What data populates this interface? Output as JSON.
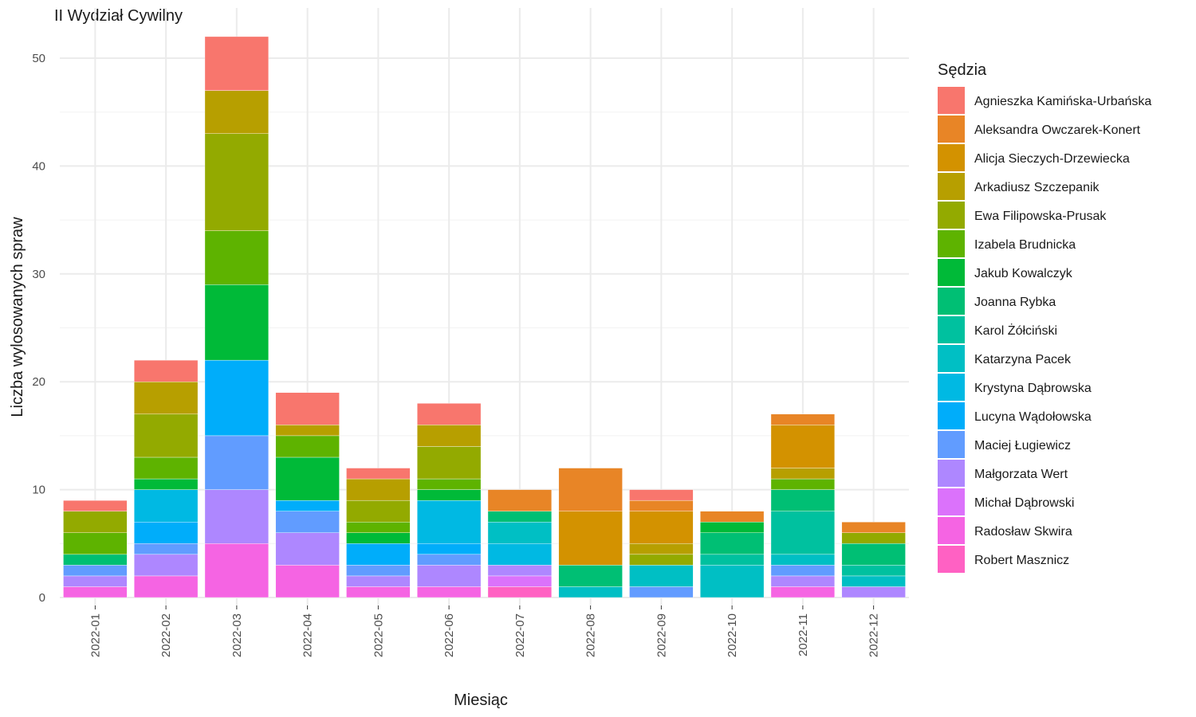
{
  "chart_data": {
    "type": "bar",
    "stacked": true,
    "title": "II Wydział Cywilny",
    "xlabel": "Miesiąc",
    "ylabel": "Liczba wylosowanych spraw",
    "ylim": [
      0,
      53
    ],
    "yticks": [
      0,
      10,
      20,
      30,
      40,
      50
    ],
    "grid": true,
    "legend_title": "Sędzia",
    "legend_position": "right",
    "categories": [
      "2022-01",
      "2022-02",
      "2022-03",
      "2022-04",
      "2022-05",
      "2022-06",
      "2022-07",
      "2022-08",
      "2022-09",
      "2022-10",
      "2022-11",
      "2022-12"
    ],
    "series": [
      {
        "name": "Agnieszka Kamińska-Urbańska",
        "color": "#F8766D",
        "values": [
          1,
          2,
          5,
          3,
          1,
          2,
          0,
          0,
          1,
          0,
          0,
          0
        ]
      },
      {
        "name": "Aleksandra Owczarek-Konert",
        "color": "#E88526",
        "values": [
          0,
          0,
          0,
          0,
          0,
          0,
          2,
          4,
          1,
          1,
          1,
          1
        ]
      },
      {
        "name": "Alicja Sieczych-Drzewiecka",
        "color": "#D39200",
        "values": [
          0,
          0,
          0,
          0,
          0,
          0,
          0,
          5,
          3,
          0,
          4,
          0
        ]
      },
      {
        "name": "Arkadiusz Szczepanik",
        "color": "#B79F00",
        "values": [
          0,
          3,
          4,
          1,
          2,
          2,
          0,
          0,
          1,
          0,
          1,
          0
        ]
      },
      {
        "name": "Ewa Filipowska-Prusak",
        "color": "#93AA00",
        "values": [
          2,
          4,
          9,
          0,
          2,
          3,
          0,
          0,
          1,
          0,
          0,
          1
        ]
      },
      {
        "name": "Izabela Brudnicka",
        "color": "#5EB300",
        "values": [
          2,
          2,
          5,
          2,
          1,
          1,
          0,
          0,
          0,
          0,
          1,
          0
        ]
      },
      {
        "name": "Jakub Kowalczyk",
        "color": "#00BA38",
        "values": [
          0,
          1,
          7,
          4,
          1,
          1,
          0,
          0,
          0,
          1,
          0,
          0
        ]
      },
      {
        "name": "Joanna Rybka",
        "color": "#00BF74",
        "values": [
          1,
          0,
          0,
          0,
          0,
          0,
          1,
          2,
          0,
          2,
          2,
          2
        ]
      },
      {
        "name": "Karol Żółciński",
        "color": "#00C19F",
        "values": [
          0,
          0,
          0,
          0,
          0,
          0,
          0,
          0,
          0,
          1,
          4,
          1
        ]
      },
      {
        "name": "Katarzyna Pacek",
        "color": "#00BFC4",
        "values": [
          0,
          0,
          0,
          0,
          0,
          0,
          2,
          1,
          2,
          3,
          1,
          1
        ]
      },
      {
        "name": "Krystyna Dąbrowska",
        "color": "#00B9E3",
        "values": [
          0,
          3,
          0,
          0,
          0,
          4,
          2,
          0,
          0,
          0,
          0,
          0
        ]
      },
      {
        "name": "Lucyna Wądołowska",
        "color": "#00ADFA",
        "values": [
          0,
          2,
          7,
          1,
          2,
          1,
          0,
          0,
          0,
          0,
          0,
          0
        ]
      },
      {
        "name": "Maciej Ługiewicz",
        "color": "#619CFF",
        "values": [
          1,
          1,
          5,
          2,
          1,
          1,
          0,
          0,
          1,
          0,
          1,
          0
        ]
      },
      {
        "name": "Małgorzata Wert",
        "color": "#AE87FF",
        "values": [
          1,
          2,
          5,
          3,
          1,
          2,
          1,
          0,
          0,
          0,
          1,
          1
        ]
      },
      {
        "name": "Michał Dąbrowski",
        "color": "#DB72FB",
        "values": [
          0,
          0,
          0,
          0,
          0,
          0,
          1,
          0,
          0,
          0,
          0,
          0
        ]
      },
      {
        "name": "Radosław Skwira",
        "color": "#F564E3",
        "values": [
          1,
          2,
          5,
          3,
          1,
          1,
          0,
          0,
          0,
          0,
          1,
          0
        ]
      },
      {
        "name": "Robert Masznicz",
        "color": "#FF61C3",
        "values": [
          0,
          0,
          0,
          0,
          0,
          0,
          1,
          0,
          0,
          0,
          0,
          0
        ]
      }
    ]
  }
}
